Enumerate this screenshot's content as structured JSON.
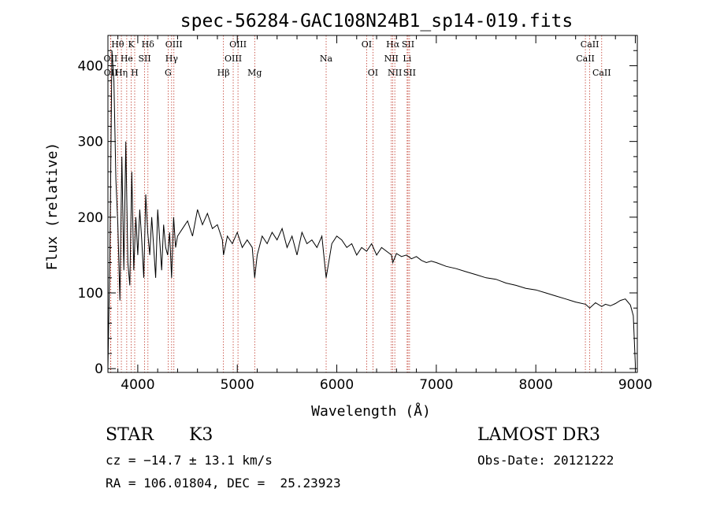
{
  "chart_data": {
    "type": "line",
    "title": "spec-56284-GAC108N24B1_sp14-019.fits",
    "xlabel": "Wavelength (Å)",
    "ylabel": "Flux (relative)",
    "xlim": [
      3700,
      9020
    ],
    "ylim": [
      -5,
      440
    ],
    "xticks": [
      4000,
      5000,
      6000,
      7000,
      8000,
      9000
    ],
    "yticks": [
      0,
      100,
      200,
      300,
      400
    ],
    "grid": false,
    "series": [
      {
        "name": "spectrum",
        "x": [
          3700,
          3720,
          3740,
          3760,
          3780,
          3800,
          3820,
          3840,
          3860,
          3880,
          3900,
          3920,
          3940,
          3960,
          3980,
          4000,
          4020,
          4040,
          4060,
          4080,
          4100,
          4120,
          4140,
          4160,
          4180,
          4200,
          4220,
          4240,
          4260,
          4280,
          4300,
          4320,
          4340,
          4360,
          4380,
          4400,
          4450,
          4500,
          4550,
          4600,
          4650,
          4700,
          4750,
          4800,
          4850,
          4861,
          4900,
          4950,
          5000,
          5050,
          5100,
          5150,
          5175,
          5200,
          5250,
          5300,
          5350,
          5400,
          5450,
          5500,
          5550,
          5600,
          5650,
          5700,
          5750,
          5800,
          5850,
          5893,
          5950,
          6000,
          6050,
          6100,
          6150,
          6200,
          6250,
          6300,
          6350,
          6400,
          6450,
          6500,
          6550,
          6563,
          6600,
          6650,
          6700,
          6750,
          6800,
          6850,
          6900,
          6950,
          7000,
          7100,
          7200,
          7300,
          7400,
          7500,
          7600,
          7700,
          7800,
          7900,
          8000,
          8100,
          8200,
          8300,
          8400,
          8500,
          8542,
          8600,
          8662,
          8700,
          8750,
          8800,
          8850,
          8900,
          8950,
          8980,
          9000
        ],
        "y": [
          0,
          150,
          420,
          380,
          250,
          190,
          90,
          280,
          130,
          300,
          140,
          110,
          260,
          130,
          200,
          150,
          210,
          170,
          120,
          230,
          180,
          150,
          200,
          160,
          120,
          210,
          170,
          130,
          190,
          160,
          150,
          180,
          120,
          200,
          160,
          175,
          185,
          195,
          175,
          210,
          190,
          205,
          185,
          190,
          170,
          150,
          175,
          165,
          180,
          160,
          170,
          160,
          120,
          150,
          175,
          165,
          180,
          170,
          185,
          160,
          175,
          150,
          180,
          165,
          170,
          160,
          175,
          120,
          165,
          175,
          170,
          160,
          165,
          150,
          160,
          155,
          165,
          150,
          160,
          155,
          150,
          140,
          152,
          148,
          150,
          145,
          148,
          143,
          140,
          142,
          140,
          135,
          132,
          128,
          124,
          120,
          118,
          113,
          110,
          106,
          104,
          100,
          96,
          92,
          88,
          85,
          80,
          87,
          82,
          85,
          83,
          86,
          90,
          92,
          84,
          70,
          5
        ]
      }
    ],
    "line_markers": [
      {
        "label": "Hθ",
        "wavelength": 3798,
        "row": 1
      },
      {
        "label": "OII",
        "wavelength": 3727,
        "row": 2
      },
      {
        "label": "OII",
        "wavelength": 3729,
        "row": 3
      },
      {
        "label": "K",
        "wavelength": 3934,
        "row": 1
      },
      {
        "label": "He",
        "wavelength": 3889,
        "row": 2
      },
      {
        "label": "Hη",
        "wavelength": 3835,
        "row": 3
      },
      {
        "label": "SII",
        "wavelength": 4069,
        "row": 2
      },
      {
        "label": "H",
        "wavelength": 3969,
        "row": 3
      },
      {
        "label": "Hδ",
        "wavelength": 4102,
        "row": 1
      },
      {
        "label": "OIII",
        "wavelength": 4363,
        "row": 1
      },
      {
        "label": "Hγ",
        "wavelength": 4340,
        "row": 2
      },
      {
        "label": "G",
        "wavelength": 4305,
        "row": 3
      },
      {
        "label": "OIII",
        "wavelength": 5007,
        "row": 1
      },
      {
        "label": "OIII",
        "wavelength": 4959,
        "row": 2
      },
      {
        "label": "Hβ",
        "wavelength": 4861,
        "row": 3
      },
      {
        "label": "Mg",
        "wavelength": 5175,
        "row": 3
      },
      {
        "label": "Na",
        "wavelength": 5893,
        "row": 2
      },
      {
        "label": "OI",
        "wavelength": 6300,
        "row": 1
      },
      {
        "label": "OI",
        "wavelength": 6363,
        "row": 3
      },
      {
        "label": "Hα",
        "wavelength": 6563,
        "row": 1
      },
      {
        "label": "SII",
        "wavelength": 6716,
        "row": 1
      },
      {
        "label": "NII",
        "wavelength": 6548,
        "row": 2
      },
      {
        "label": "Li",
        "wavelength": 6707,
        "row": 2
      },
      {
        "label": "NII",
        "wavelength": 6583,
        "row": 3
      },
      {
        "label": "SII",
        "wavelength": 6731,
        "row": 3
      },
      {
        "label": "CaII",
        "wavelength": 8542,
        "row": 1
      },
      {
        "label": "CaII",
        "wavelength": 8498,
        "row": 2
      },
      {
        "label": "CaII",
        "wavelength": 8662,
        "row": 3
      }
    ],
    "colors": {
      "spectrum": "#000000",
      "markers": "#c0392b",
      "axes": "#000000"
    }
  },
  "info": {
    "object_class": "STAR",
    "subclass": "K3",
    "survey": "LAMOST DR3",
    "redshift": "cz = −14.7 ± 13.1 km/s",
    "obs_date": "Obs-Date: 20121222",
    "coords": "RA = 106.01804, DEC =  25.23923"
  }
}
